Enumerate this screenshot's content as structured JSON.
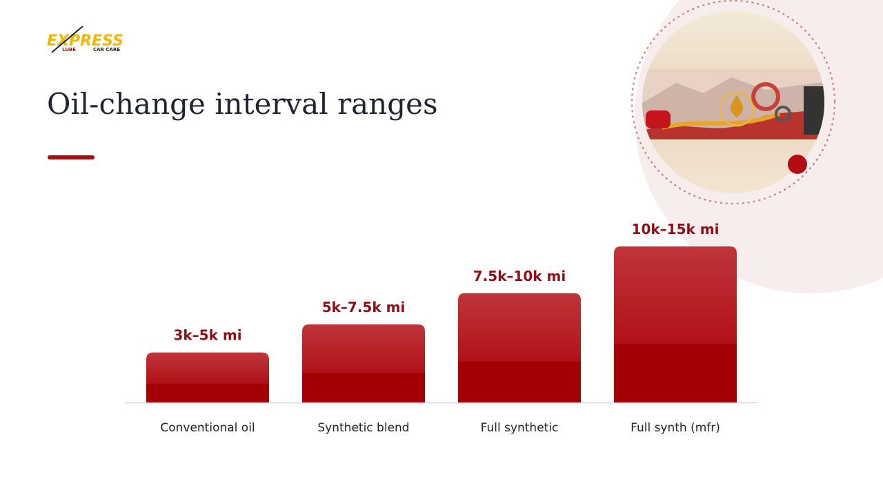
{
  "logo": {
    "name": "EXPRESS",
    "tagline_left": "LUBE",
    "tagline_right": "CAR CARE"
  },
  "chart_data": {
    "type": "bar",
    "title": "Oil-change interval ranges",
    "categories": [
      "Conventional oil",
      "Synthetic blend",
      "Full synthetic",
      "Full synth (mfr)"
    ],
    "values": [
      4,
      6.25,
      8.75,
      12.5
    ],
    "value_labels": [
      "3k–5k mi",
      "5k–7.5k mi",
      "7.5k–10k mi",
      "10k–15k mi"
    ],
    "color": "#b01218"
  }
}
